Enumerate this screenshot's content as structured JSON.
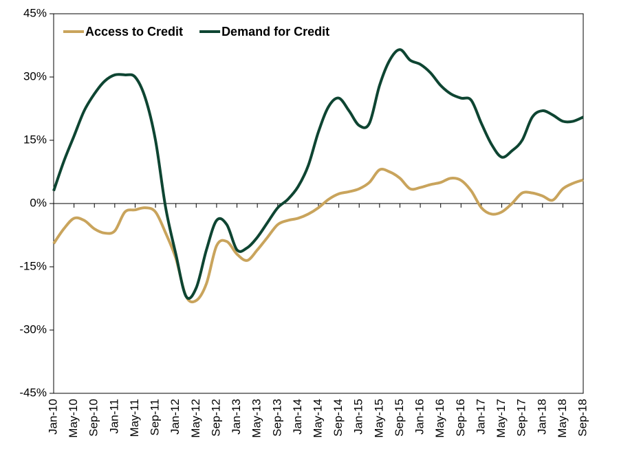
{
  "chart_data": {
    "type": "line",
    "categories": [
      "Jan-10",
      null,
      "May-10",
      null,
      "Sep-10",
      null,
      "Jan-11",
      null,
      "May-11",
      null,
      "Sep-11",
      null,
      "Jan-12",
      null,
      "May-12",
      null,
      "Sep-12",
      null,
      "Jan-13",
      null,
      "May-13",
      null,
      "Sep-13",
      null,
      "Jan-14",
      null,
      "May-14",
      null,
      "Sep-14",
      null,
      "Jan-15",
      null,
      "May-15",
      null,
      "Sep-15",
      null,
      "Jan-16",
      null,
      "May-16",
      null,
      "Sep-16",
      null,
      "Jan-17",
      null,
      "May-17",
      null,
      "Sep-17",
      null,
      "Jan-18",
      null,
      "May-18",
      null,
      "Sep-18"
    ],
    "series": [
      {
        "name": "Access to Credit",
        "color": "#c9a45c",
        "values": [
          -9.5,
          -6,
          -3.5,
          -4,
          -6,
          -7,
          -6.5,
          -2,
          -1.5,
          -1,
          -2,
          -7,
          -13,
          -22,
          -23,
          -19,
          -10,
          -9,
          -12,
          -13.5,
          -11,
          -8,
          -5,
          -4,
          -3.5,
          -2.5,
          -1,
          1,
          2.3,
          2.8,
          3.5,
          5,
          8,
          7.5,
          6,
          3.5,
          3.8,
          4.5,
          5,
          6,
          5.5,
          3,
          -1,
          -2.5,
          -2,
          0,
          2.5,
          2.5,
          1.8,
          0.8,
          3.5,
          4.8,
          5.6
        ]
      },
      {
        "name": "Demand for Credit",
        "color": "#0e4532",
        "values": [
          3,
          10,
          16,
          22,
          26,
          29,
          30.5,
          30.5,
          30,
          25,
          15,
          -1,
          -12,
          -22,
          -20,
          -11,
          -4,
          -5,
          -11,
          -10.5,
          -8,
          -4.5,
          -1,
          1,
          4,
          9,
          17,
          23,
          25,
          22,
          18.5,
          19,
          28,
          34,
          36.5,
          34,
          33,
          31,
          28,
          26,
          25,
          24.5,
          19,
          14,
          11,
          12.5,
          15,
          20.5,
          22,
          21,
          19.5,
          19.5,
          20.5
        ]
      }
    ],
    "ylim": [
      -45,
      45
    ],
    "yticks": [
      {
        "value": -45,
        "label": "-45%"
      },
      {
        "value": -30,
        "label": "-30%"
      },
      {
        "value": -15,
        "label": "-15%"
      },
      {
        "value": 0,
        "label": "0%"
      },
      {
        "value": 15,
        "label": "15%"
      },
      {
        "value": 30,
        "label": "30%"
      },
      {
        "value": 45,
        "label": "45%"
      }
    ],
    "legend": "top-left"
  }
}
